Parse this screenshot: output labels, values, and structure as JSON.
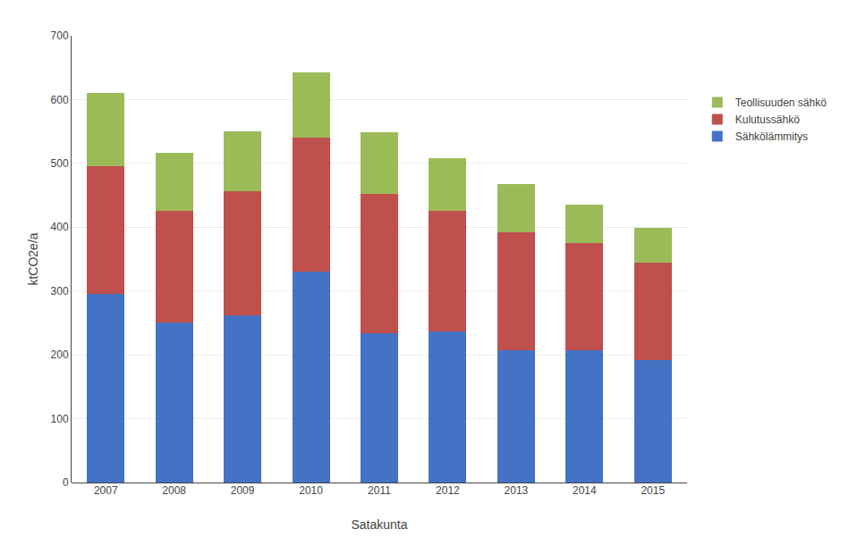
{
  "chart_data": {
    "type": "bar",
    "stacked": true,
    "xlabel": "Satakunta",
    "ylabel": "ktCO2e/a",
    "categories": [
      "2007",
      "2008",
      "2009",
      "2010",
      "2011",
      "2012",
      "2013",
      "2014",
      "2015"
    ],
    "series": [
      {
        "name": "Sähkölämmitys",
        "color": "#4472C4",
        "values": [
          295,
          250,
          262,
          330,
          234,
          237,
          207,
          207,
          192
        ]
      },
      {
        "name": "Kulutussähkö",
        "color": "#C0504D",
        "values": [
          200,
          175,
          195,
          210,
          218,
          188,
          185,
          168,
          152
        ]
      },
      {
        "name": "Teollisuuden sähkö",
        "color": "#9BBB59",
        "values": [
          115,
          92,
          93,
          102,
          97,
          83,
          75,
          60,
          55
        ]
      }
    ],
    "ylim": [
      0,
      700
    ],
    "yticks": [
      0,
      100,
      200,
      300,
      400,
      500,
      600,
      700
    ],
    "grid": true,
    "legend": "right"
  }
}
